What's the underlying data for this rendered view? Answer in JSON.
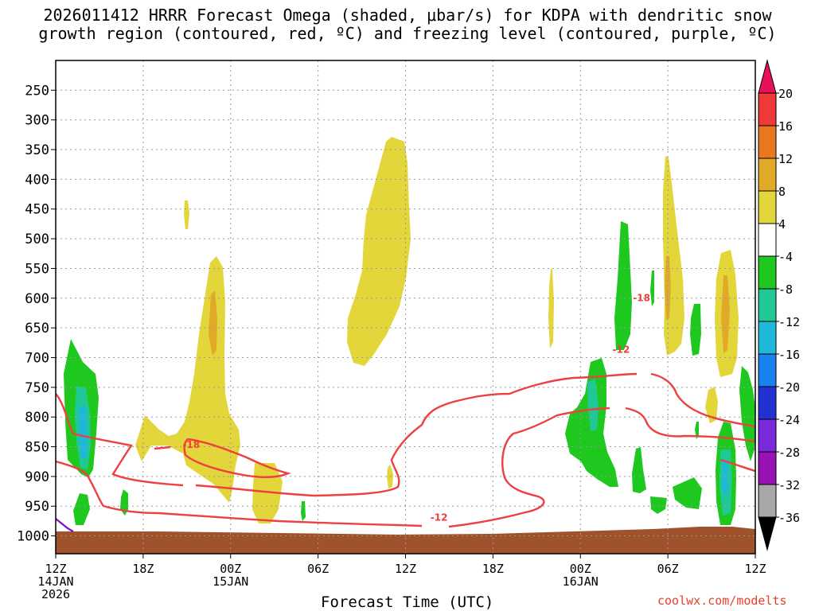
{
  "title_line1": "2026011412 HRRR Forecast Omega (shaded, μbar/s) for KDPA with dendritic snow",
  "title_line2": "growth region (contoured, red, ºC) and freezing level (contoured, purple, ºC)",
  "x_axis_title": "Forecast Time (UTC)",
  "credit": "coolwx.com/modelts",
  "chart_data": {
    "type": "heatmap",
    "x_ticks": [
      {
        "hours": 0,
        "label": "12Z",
        "sub": [
          "14JAN",
          "2026"
        ]
      },
      {
        "hours": 6,
        "label": "18Z",
        "sub": []
      },
      {
        "hours": 12,
        "label": "00Z",
        "sub": [
          "15JAN"
        ]
      },
      {
        "hours": 18,
        "label": "06Z",
        "sub": []
      },
      {
        "hours": 24,
        "label": "12Z",
        "sub": []
      },
      {
        "hours": 30,
        "label": "18Z",
        "sub": []
      },
      {
        "hours": 36,
        "label": "00Z",
        "sub": [
          "16JAN"
        ]
      },
      {
        "hours": 42,
        "label": "06Z",
        "sub": []
      },
      {
        "hours": 48,
        "label": "12Z",
        "sub": []
      }
    ],
    "y_ticks": [
      250,
      300,
      350,
      400,
      450,
      500,
      550,
      600,
      650,
      700,
      750,
      800,
      850,
      900,
      950,
      1000
    ],
    "y_range_hpa": [
      200,
      1030
    ],
    "x_range_hours": [
      0,
      48
    ],
    "colorbar": {
      "labels": [
        "20",
        "16",
        "12",
        "8",
        "4",
        "-4",
        "-8",
        "-12",
        "-16",
        "-20",
        "-24",
        "-28",
        "-32",
        "-36"
      ],
      "colors": [
        "#e8105a",
        "#f03a3a",
        "#e87820",
        "#e0aa28",
        "#e2d63a",
        "#ffffff",
        "#1ec81e",
        "#20c896",
        "#20b8d8",
        "#1a82ee",
        "#2232d2",
        "#7a2adc",
        "#9a12b4",
        "#a8a8a8",
        "#000000"
      ]
    },
    "contour_labels": [
      {
        "text": "-18",
        "hours": 40.2,
        "hpa": 598
      },
      {
        "text": "-12",
        "hours": 38.8,
        "hpa": 685
      },
      {
        "text": "-18",
        "hours": 9.3,
        "hpa": 845
      },
      {
        "text": "-12",
        "hours": 26.3,
        "hpa": 968
      }
    ],
    "contour_colors": {
      "dgz": "#ee4040",
      "freezing": "#8a10c8",
      "terrain": "#a0522d"
    },
    "grid": true
  }
}
